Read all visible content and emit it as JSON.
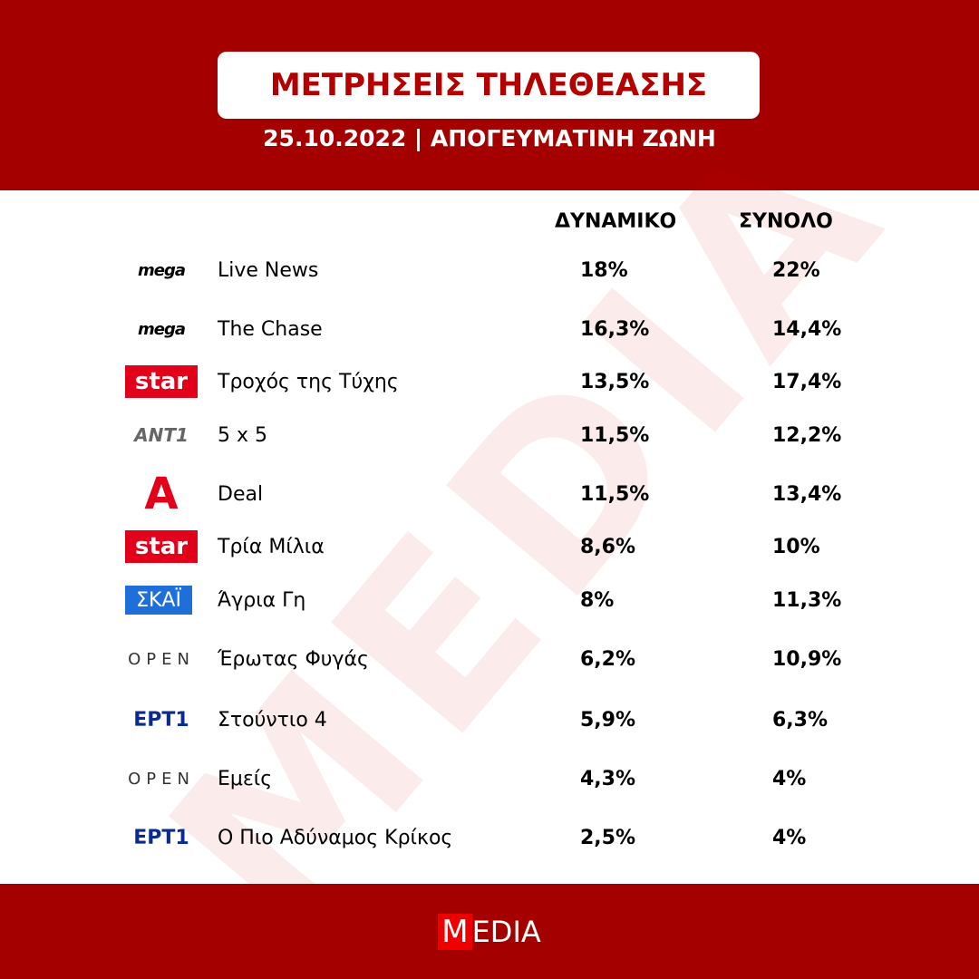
{
  "header": {
    "title": "ΜΕΤΡΗΣΕΙΣ ΤΗΛΕΘΕΑΣΗΣ",
    "subtitle": "25.10.2022 | ΑΠΟΓΕΥΜΑΤΙΝΗ ΖΩΝΗ"
  },
  "watermark": "MEDIA",
  "table": {
    "columns": [
      "ΔΥΝΑΜΙΚΟ",
      "ΣΥΝΟΛΟ"
    ],
    "rows": [
      [
        "mega",
        "Live News",
        "18%",
        "22%"
      ],
      [
        "mega",
        "The Chase",
        "16,3%",
        "14,4%"
      ],
      [
        "star",
        "Τροχός της Τύχης",
        "13,5%",
        "17,4%"
      ],
      [
        "ANT1",
        "5 x 5",
        "11,5%",
        "12,2%"
      ],
      [
        "Α",
        "Deal",
        "11,5%",
        "13,4%"
      ],
      [
        "star",
        "Τρία Μίλια",
        "8,6%",
        "10%"
      ],
      [
        "ΣΚΑΪ",
        "Άγρια Γη",
        "8%",
        "11,3%"
      ],
      [
        "OPEN",
        "Έρωτας Φυγάς",
        "6,2%",
        "10,9%"
      ],
      [
        "ΕΡΤ1",
        "Στούντιο 4",
        "5,9%",
        "6,3%"
      ],
      [
        "OPEN",
        "Εμείς",
        "4,3%",
        "4%"
      ],
      [
        "ΕΡΤ1",
        "Ο Πιο Αδύναμος Κρίκος",
        "2,5%",
        "4%"
      ]
    ]
  },
  "footer": {
    "logo_m": "M",
    "logo_rest": "EDIA"
  }
}
